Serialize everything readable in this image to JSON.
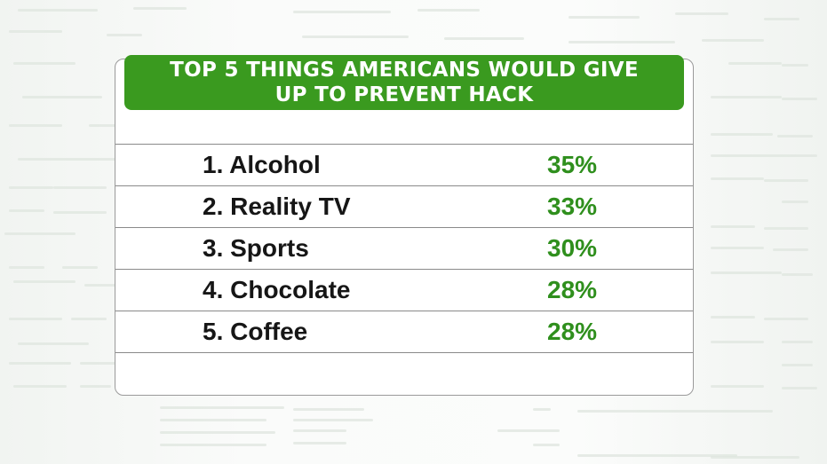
{
  "chart_data": {
    "type": "table",
    "title": "TOP 5 THINGS AMERICANS WOULD GIVE UP TO PREVENT HACK",
    "rows": [
      {
        "label": "1. Alcohol",
        "value": "35%"
      },
      {
        "label": "2. Reality TV",
        "value": "33%"
      },
      {
        "label": "3. Sports",
        "value": "30%"
      },
      {
        "label": "4. Chocolate",
        "value": "28%"
      },
      {
        "label": "5. Coffee",
        "value": "28%"
      }
    ],
    "categories": [
      "Alcohol",
      "Reality TV",
      "Sports",
      "Chocolate",
      "Coffee"
    ],
    "values": [
      35,
      33,
      30,
      28,
      28
    ]
  },
  "colors": {
    "accent": "#3a9a1f",
    "value_text": "#2f8f1d",
    "label_text": "#161616"
  }
}
